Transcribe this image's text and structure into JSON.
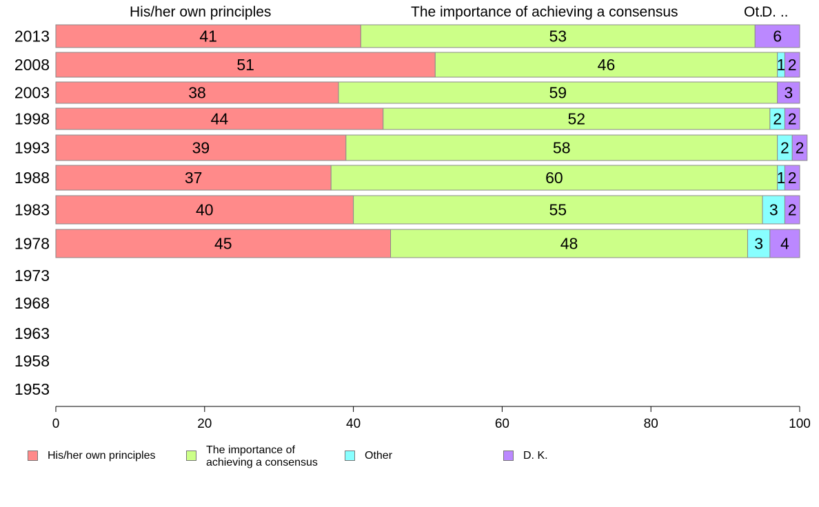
{
  "chart_data": {
    "type": "bar",
    "orientation": "horizontal",
    "stacked": true,
    "categories": [
      "2013",
      "2008",
      "2003",
      "1998",
      "1993",
      "1988",
      "1983",
      "1978",
      "1973",
      "1968",
      "1963",
      "1958",
      "1953"
    ],
    "series": [
      {
        "name": "His/her own principles",
        "color": "#ff8a8a",
        "values": [
          41,
          51,
          38,
          44,
          39,
          37,
          40,
          45,
          null,
          null,
          null,
          null,
          null
        ]
      },
      {
        "name": "The importance of achieving a consensus",
        "color": "#ccff88",
        "values": [
          53,
          46,
          59,
          52,
          58,
          60,
          55,
          48,
          null,
          null,
          null,
          null,
          null
        ]
      },
      {
        "name": "Other",
        "color": "#88ffff",
        "values": [
          0,
          1,
          0,
          2,
          2,
          1,
          3,
          3,
          null,
          null,
          null,
          null,
          null
        ]
      },
      {
        "name": "D. K.",
        "color": "#bb88ff",
        "values": [
          6,
          2,
          3,
          2,
          2,
          2,
          2,
          4,
          null,
          null,
          null,
          null,
          null
        ]
      }
    ],
    "column_headers": [
      "His/her own principles",
      "The importance of achieving a consensus",
      "Ot.",
      "D. .."
    ],
    "x_ticks": [
      "0",
      "20",
      "40",
      "60",
      "80",
      "100"
    ],
    "xlim": [
      0,
      100
    ],
    "grid": false,
    "legend_position": "bottom"
  },
  "legend": {
    "items": [
      {
        "lines": [
          "His/her own principles"
        ],
        "color": "#ff8a8a"
      },
      {
        "lines": [
          "The importance of",
          "achieving a consensus"
        ],
        "color": "#ccff88"
      },
      {
        "lines": [
          "Other"
        ],
        "color": "#88ffff"
      },
      {
        "lines": [
          "D. K."
        ],
        "color": "#bb88ff"
      }
    ]
  }
}
